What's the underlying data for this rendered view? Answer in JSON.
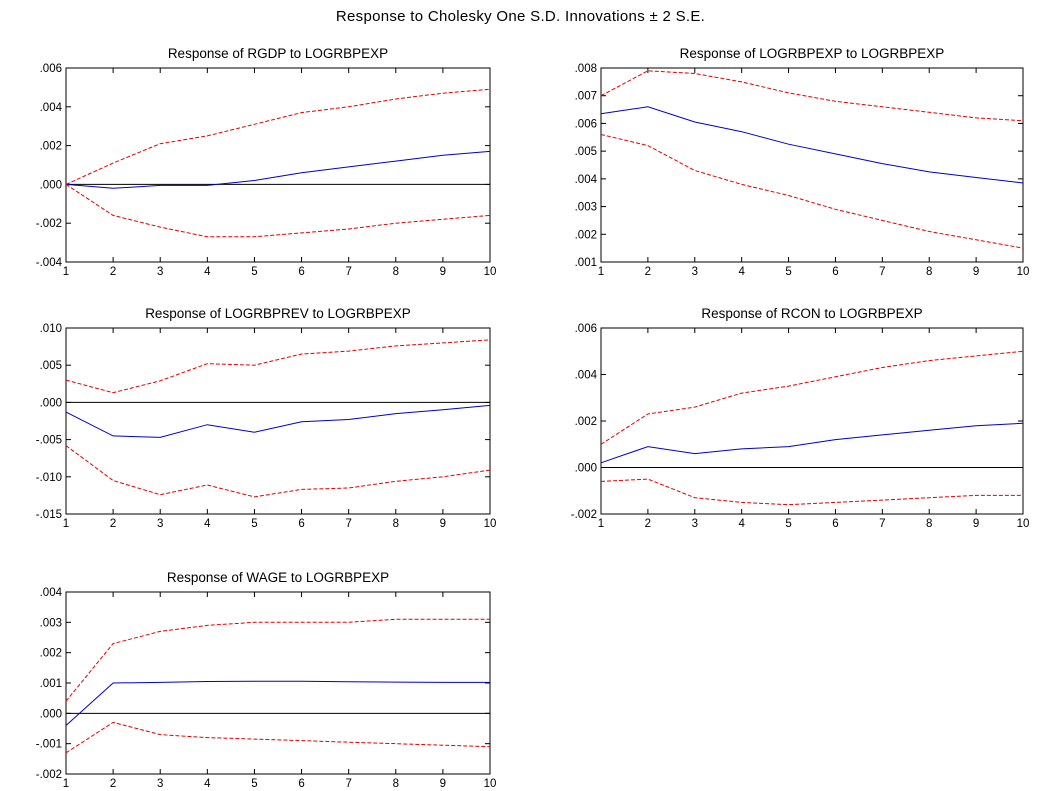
{
  "title": "Response to Cholesky One S.D. Innovations ± 2 S.E.",
  "colors": {
    "response": "#0000c8",
    "bands": "#e00000",
    "zero_line": "#000000",
    "frame": "#000000"
  },
  "chart_data": [
    {
      "type": "line",
      "title": "Response of RGDP to LOGRBPEXP",
      "x": [
        1,
        2,
        3,
        4,
        5,
        6,
        7,
        8,
        9,
        10
      ],
      "xlim": [
        1,
        10
      ],
      "ylim": [
        -0.004,
        0.006
      ],
      "yticks": [
        -0.004,
        -0.002,
        0,
        0.002,
        0.004,
        0.006
      ],
      "ytick_labels": [
        "-.004",
        "-.002",
        ".000",
        ".002",
        ".004",
        ".006"
      ],
      "xtick_labels": [
        "1",
        "2",
        "3",
        "4",
        "5",
        "6",
        "7",
        "8",
        "9",
        "10"
      ],
      "zero_line": true,
      "series": [
        {
          "role": "response",
          "values": [
            0.0,
            -0.0002,
            -5e-05,
            -5e-05,
            0.0002,
            0.0006,
            0.0009,
            0.0012,
            0.0015,
            0.0017
          ]
        },
        {
          "role": "upper",
          "values": [
            0.0,
            0.0011,
            0.0021,
            0.0025,
            0.0031,
            0.0037,
            0.004,
            0.0044,
            0.0047,
            0.0049
          ]
        },
        {
          "role": "lower",
          "values": [
            0.0,
            -0.0016,
            -0.0022,
            -0.0027,
            -0.0027,
            -0.0025,
            -0.0023,
            -0.002,
            -0.0018,
            -0.0016
          ]
        }
      ]
    },
    {
      "type": "line",
      "title": "Response of LOGRBPEXP to LOGRBPEXP",
      "x": [
        1,
        2,
        3,
        4,
        5,
        6,
        7,
        8,
        9,
        10
      ],
      "xlim": [
        1,
        10
      ],
      "ylim": [
        0.001,
        0.008
      ],
      "yticks": [
        0.001,
        0.002,
        0.003,
        0.004,
        0.005,
        0.006,
        0.007,
        0.008
      ],
      "ytick_labels": [
        ".001",
        ".002",
        ".003",
        ".004",
        ".005",
        ".006",
        ".007",
        ".008"
      ],
      "xtick_labels": [
        "1",
        "2",
        "3",
        "4",
        "5",
        "6",
        "7",
        "8",
        "9",
        "10"
      ],
      "zero_line": false,
      "series": [
        {
          "role": "response",
          "values": [
            0.00635,
            0.0066,
            0.00605,
            0.0057,
            0.00525,
            0.0049,
            0.00455,
            0.00425,
            0.00405,
            0.00385
          ]
        },
        {
          "role": "upper",
          "values": [
            0.007,
            0.0079,
            0.0078,
            0.0075,
            0.0071,
            0.0068,
            0.0066,
            0.0064,
            0.0062,
            0.0061
          ]
        },
        {
          "role": "lower",
          "values": [
            0.0056,
            0.0052,
            0.0043,
            0.0038,
            0.0034,
            0.0029,
            0.0025,
            0.0021,
            0.0018,
            0.0015
          ]
        }
      ]
    },
    {
      "type": "line",
      "title": "Response of LOGRBPREV to LOGRBPEXP",
      "x": [
        1,
        2,
        3,
        4,
        5,
        6,
        7,
        8,
        9,
        10
      ],
      "xlim": [
        1,
        10
      ],
      "ylim": [
        -0.015,
        0.01
      ],
      "yticks": [
        -0.015,
        -0.01,
        -0.005,
        0,
        0.005,
        0.01
      ],
      "ytick_labels": [
        "-.015",
        "-.010",
        "-.005",
        ".000",
        ".005",
        ".010"
      ],
      "xtick_labels": [
        "1",
        "2",
        "3",
        "4",
        "5",
        "6",
        "7",
        "8",
        "9",
        "10"
      ],
      "zero_line": true,
      "series": [
        {
          "role": "response",
          "values": [
            -0.0013,
            -0.0045,
            -0.0047,
            -0.003,
            -0.004,
            -0.0026,
            -0.0023,
            -0.0015,
            -0.001,
            -0.0004
          ]
        },
        {
          "role": "upper",
          "values": [
            0.003,
            0.0013,
            0.0029,
            0.0052,
            0.005,
            0.0065,
            0.0069,
            0.0076,
            0.008,
            0.0084
          ]
        },
        {
          "role": "lower",
          "values": [
            -0.0058,
            -0.0105,
            -0.0124,
            -0.0111,
            -0.0127,
            -0.0117,
            -0.0115,
            -0.0106,
            -0.01,
            -0.0091
          ]
        }
      ]
    },
    {
      "type": "line",
      "title": "Response of RCON to LOGRBPEXP",
      "x": [
        1,
        2,
        3,
        4,
        5,
        6,
        7,
        8,
        9,
        10
      ],
      "xlim": [
        1,
        10
      ],
      "ylim": [
        -0.002,
        0.006
      ],
      "yticks": [
        -0.002,
        0,
        0.002,
        0.004,
        0.006
      ],
      "ytick_labels": [
        "-.002",
        ".000",
        ".002",
        ".004",
        ".006"
      ],
      "xtick_labels": [
        "1",
        "2",
        "3",
        "4",
        "5",
        "6",
        "7",
        "8",
        "9",
        "10"
      ],
      "zero_line": true,
      "series": [
        {
          "role": "response",
          "values": [
            0.0002,
            0.0009,
            0.0006,
            0.0008,
            0.0009,
            0.0012,
            0.0014,
            0.0016,
            0.0018,
            0.0019
          ]
        },
        {
          "role": "upper",
          "values": [
            0.001,
            0.0023,
            0.0026,
            0.0032,
            0.0035,
            0.0039,
            0.0043,
            0.0046,
            0.0048,
            0.005
          ]
        },
        {
          "role": "lower",
          "values": [
            -0.0006,
            -0.0005,
            -0.0013,
            -0.0015,
            -0.0016,
            -0.0015,
            -0.0014,
            -0.0013,
            -0.0012,
            -0.0012
          ]
        }
      ]
    },
    {
      "type": "line",
      "title": "Response of WAGE to LOGRBPEXP",
      "x": [
        1,
        2,
        3,
        4,
        5,
        6,
        7,
        8,
        9,
        10
      ],
      "xlim": [
        1,
        10
      ],
      "ylim": [
        -0.002,
        0.004
      ],
      "yticks": [
        -0.002,
        -0.001,
        0,
        0.001,
        0.002,
        0.003,
        0.004
      ],
      "ytick_labels": [
        "-.002",
        "-.001",
        ".000",
        ".001",
        ".002",
        ".003",
        ".004"
      ],
      "xtick_labels": [
        "1",
        "2",
        "3",
        "4",
        "5",
        "6",
        "7",
        "8",
        "9",
        "10"
      ],
      "zero_line": true,
      "series": [
        {
          "role": "response",
          "values": [
            -0.0004,
            0.001,
            0.00102,
            0.00105,
            0.00106,
            0.00106,
            0.00104,
            0.00103,
            0.00102,
            0.00102
          ]
        },
        {
          "role": "upper",
          "values": [
            0.0004,
            0.0023,
            0.0027,
            0.0029,
            0.003,
            0.003,
            0.003,
            0.0031,
            0.0031,
            0.0031
          ]
        },
        {
          "role": "lower",
          "values": [
            -0.0013,
            -0.0003,
            -0.0007,
            -0.0008,
            -0.00085,
            -0.0009,
            -0.00095,
            -0.001,
            -0.00105,
            -0.0011
          ]
        }
      ]
    }
  ]
}
